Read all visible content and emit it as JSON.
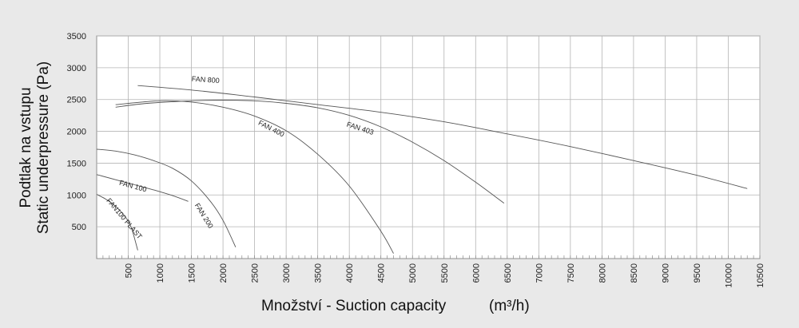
{
  "chart_data": {
    "type": "line",
    "title": "",
    "xlabel": "Množství - Suction capacity",
    "xlabel_unit": "(m³/h)",
    "ylabel": [
      "Podtlak na vstupu",
      "Static underpressure (Pa)"
    ],
    "xlim": [
      0,
      10500
    ],
    "ylim": [
      0,
      3500
    ],
    "x_ticks": [
      500,
      1000,
      1500,
      2000,
      2500,
      3000,
      3500,
      4000,
      4500,
      5000,
      5500,
      6000,
      6500,
      7000,
      7500,
      8000,
      8500,
      9000,
      9500,
      10000,
      10500
    ],
    "y_ticks": [
      500,
      1000,
      1500,
      2000,
      2500,
      3000,
      3500
    ],
    "grid": true,
    "series": [
      {
        "name": "FAN 800",
        "x": [
          650,
          1500,
          2500,
          3500,
          4500,
          5500,
          6500,
          7500,
          8500,
          9500,
          10300
        ],
        "y": [
          2720,
          2650,
          2540,
          2420,
          2300,
          2150,
          1960,
          1760,
          1540,
          1310,
          1100
        ]
      },
      {
        "name": "FAN 403",
        "x": [
          300,
          800,
          1500,
          2000,
          2500,
          3000,
          3500,
          4000,
          4500,
          5000,
          5500,
          6000,
          6450
        ],
        "y": [
          2380,
          2440,
          2480,
          2490,
          2480,
          2440,
          2370,
          2250,
          2070,
          1830,
          1540,
          1200,
          870
        ]
      },
      {
        "name": "FAN 400",
        "x": [
          300,
          1000,
          1500,
          2000,
          2500,
          3000,
          3500,
          4000,
          4500,
          4700
        ],
        "y": [
          2420,
          2480,
          2460,
          2380,
          2240,
          2010,
          1640,
          1140,
          430,
          80
        ]
      },
      {
        "name": "FAN 200",
        "x": [
          0,
          300,
          600,
          900,
          1200,
          1500,
          1800,
          2000,
          2200
        ],
        "y": [
          1720,
          1690,
          1630,
          1540,
          1420,
          1220,
          900,
          600,
          180
        ]
      },
      {
        "name": "FAN 100",
        "x": [
          0,
          300,
          600,
          900,
          1200,
          1450
        ],
        "y": [
          1320,
          1240,
          1160,
          1080,
          990,
          900
        ]
      },
      {
        "name": "FAN100 PLAST",
        "x": [
          0,
          150,
          300,
          450,
          550,
          650
        ],
        "y": [
          1010,
          930,
          820,
          660,
          480,
          130
        ]
      }
    ]
  }
}
